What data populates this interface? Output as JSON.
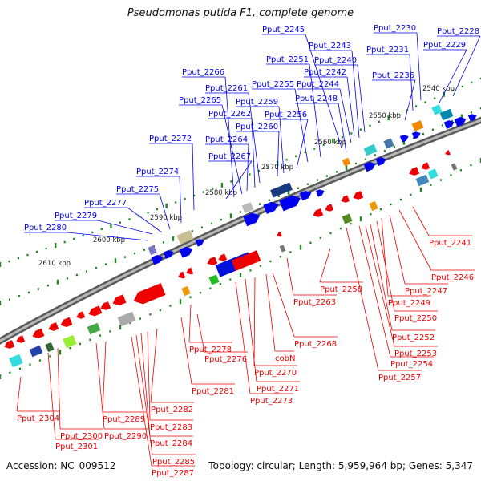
{
  "header": {
    "title": "Pseudomonas putida F1, complete genome"
  },
  "footer": {
    "accession": "Accession: NC_009512",
    "summary": "Topology: circular; Length: 5,959,964 bp; Genes: 5,347"
  },
  "colors": {
    "forward": "#0000ee",
    "reverse": "#ee0000",
    "backbone": "#808080",
    "tick": "#228822"
  },
  "kbp_ticks": [
    {
      "label": "2540 kbp"
    },
    {
      "label": "2550 kbp"
    },
    {
      "label": "2560 kbp"
    },
    {
      "label": "2570 kbp"
    },
    {
      "label": "2580 kbp"
    },
    {
      "label": "2590 kbp"
    },
    {
      "label": "2600 kbp"
    },
    {
      "label": "2610 kbp"
    }
  ],
  "top_labels": [
    "Pput_2228",
    "Pput_2229",
    "Pput_2230",
    "Pput_2231",
    "Pput_2236",
    "Pput_2240",
    "Pput_2242",
    "Pput_2243",
    "Pput_2244",
    "Pput_2245",
    "Pput_2248",
    "Pput_2251",
    "Pput_2255",
    "Pput_2256",
    "Pput_2259",
    "Pput_2260",
    "Pput_2261",
    "Pput_2262",
    "Pput_2264",
    "Pput_2265",
    "Pput_2266",
    "Pput_2267",
    "Pput_2272",
    "Pput_2274",
    "Pput_2275",
    "Pput_2277",
    "Pput_2279",
    "Pput_2280"
  ],
  "bottom_labels": [
    "Pput_2241",
    "Pput_2246",
    "Pput_2247",
    "Pput_2249",
    "Pput_2250",
    "Pput_2252",
    "Pput_2253",
    "Pput_2254",
    "Pput_2257",
    "Pput_2258",
    "Pput_2263",
    "Pput_2268",
    "cobN",
    "Pput_2270",
    "Pput_2271",
    "Pput_2273",
    "Pput_2276",
    "Pput_2278",
    "Pput_2281",
    "Pput_2282",
    "Pput_2283",
    "Pput_2284",
    "Pput_2285",
    "Pput_2287",
    "Pput_2289",
    "Pput_2290",
    "Pput_2300",
    "Pput_2301",
    "Pput_2304"
  ]
}
